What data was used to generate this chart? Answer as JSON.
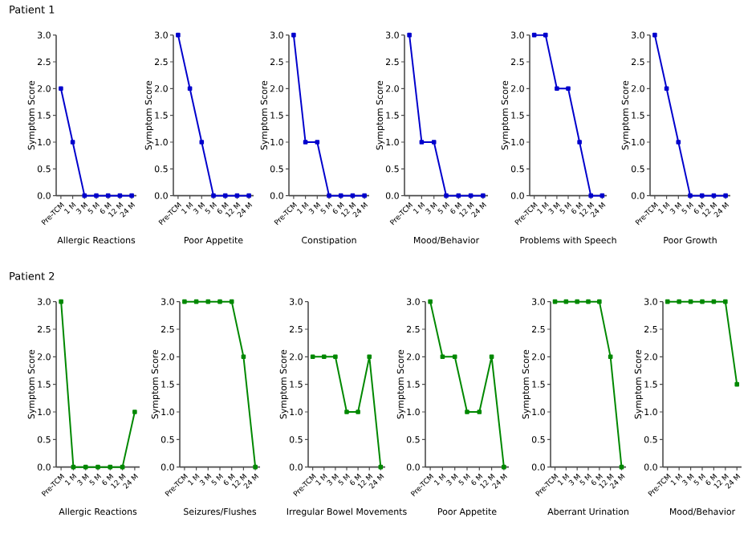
{
  "chart_data": [
    {
      "type": "line",
      "title": "Patient 1",
      "xlabel": "Allergic Reactions",
      "ylabel": "Symptom Score",
      "categories": [
        "Pre-TCM",
        "1 M",
        "3 M",
        "5 M",
        "6 M",
        "12 M",
        "24 M"
      ],
      "values": [
        2,
        1,
        0,
        0,
        0,
        0,
        0
      ],
      "color": "#0000cc",
      "marker": "square",
      "ylim": [
        0,
        3
      ],
      "yticks": [
        {
          "value": 0,
          "label": "0.0"
        },
        {
          "value": 0.5,
          "label": "0.5"
        },
        {
          "value": 1,
          "label": "1.0"
        },
        {
          "value": 1.5,
          "label": "1.5"
        },
        {
          "value": 2,
          "label": "2.0"
        },
        {
          "value": 2.5,
          "label": "2.5"
        },
        {
          "value": 3,
          "label": "3.0"
        }
      ]
    },
    {
      "type": "line",
      "xlabel": "Poor Appetite",
      "ylabel": "Symptom Score",
      "categories": [
        "Pre-TCM",
        "1 M",
        "3 M",
        "5 M",
        "6 M",
        "12 M",
        "24 M"
      ],
      "values": [
        3,
        2,
        1,
        0,
        0,
        0,
        0
      ],
      "color": "#0000cc",
      "marker": "square",
      "ylim": [
        0,
        3
      ],
      "yticks": [
        {
          "value": 0,
          "label": "0.0"
        },
        {
          "value": 0.5,
          "label": "0.5"
        },
        {
          "value": 1,
          "label": "1.0"
        },
        {
          "value": 1.5,
          "label": "1.5"
        },
        {
          "value": 2,
          "label": "2.0"
        },
        {
          "value": 2.5,
          "label": "2.5"
        },
        {
          "value": 3,
          "label": "3.0"
        }
      ]
    },
    {
      "type": "line",
      "xlabel": "Constipation",
      "ylabel": "Symptom Score",
      "categories": [
        "Pre-TCM",
        "1 M",
        "3 M",
        "5 M",
        "6 M",
        "12 M",
        "24 M"
      ],
      "values": [
        3,
        1,
        1,
        0,
        0,
        0,
        0
      ],
      "color": "#0000cc",
      "marker": "square",
      "ylim": [
        0,
        3
      ],
      "yticks": [
        {
          "value": 0,
          "label": "0.0"
        },
        {
          "value": 0.5,
          "label": "0.5"
        },
        {
          "value": 1,
          "label": "1.0"
        },
        {
          "value": 1.5,
          "label": "1.5"
        },
        {
          "value": 2,
          "label": "2.0"
        },
        {
          "value": 2.5,
          "label": "2.5"
        },
        {
          "value": 3,
          "label": "3.0"
        }
      ]
    },
    {
      "type": "line",
      "xlabel": "Mood/Behavior",
      "ylabel": "Symptom Score",
      "categories": [
        "Pre-TCM",
        "1 M",
        "3 M",
        "5 M",
        "6 M",
        "12 M",
        "24 M"
      ],
      "values": [
        3,
        1,
        1,
        0,
        0,
        0,
        0
      ],
      "color": "#0000cc",
      "marker": "square",
      "ylim": [
        0,
        3
      ],
      "yticks": [
        {
          "value": 0,
          "label": "0.0"
        },
        {
          "value": 0.5,
          "label": "0.5"
        },
        {
          "value": 1,
          "label": "1.0"
        },
        {
          "value": 1.5,
          "label": "1.5"
        },
        {
          "value": 2,
          "label": "2.0"
        },
        {
          "value": 2.5,
          "label": "2.5"
        },
        {
          "value": 3,
          "label": "3.0"
        }
      ]
    },
    {
      "type": "line",
      "xlabel": "Problems with Speech",
      "ylabel": "Symptom Score",
      "categories": [
        "Pre-TCM",
        "1 M",
        "3 M",
        "5 M",
        "6 M",
        "12 M",
        "24 M"
      ],
      "values": [
        3,
        3,
        2,
        2,
        1,
        0,
        0
      ],
      "color": "#0000cc",
      "marker": "square",
      "ylim": [
        0,
        3
      ],
      "yticks": [
        {
          "value": 0,
          "label": "0.0"
        },
        {
          "value": 0.5,
          "label": "0.5"
        },
        {
          "value": 1,
          "label": "1.0"
        },
        {
          "value": 1.5,
          "label": "1.5"
        },
        {
          "value": 2,
          "label": "2.0"
        },
        {
          "value": 2.5,
          "label": "2.5"
        },
        {
          "value": 3,
          "label": "3.0"
        }
      ]
    },
    {
      "type": "line",
      "xlabel": "Poor Growth",
      "ylabel": "Symptom Score",
      "categories": [
        "Pre-TCM",
        "1 M",
        "3 M",
        "5 M",
        "6 M",
        "12 M",
        "24 M"
      ],
      "values": [
        3,
        2,
        1,
        0,
        0,
        0,
        0
      ],
      "color": "#0000cc",
      "marker": "square",
      "ylim": [
        0,
        3
      ],
      "yticks": [
        {
          "value": 0,
          "label": "0.0"
        },
        {
          "value": 0.5,
          "label": "0.5"
        },
        {
          "value": 1,
          "label": "1.0"
        },
        {
          "value": 1.5,
          "label": "1.5"
        },
        {
          "value": 2,
          "label": "2.0"
        },
        {
          "value": 2.5,
          "label": "2.5"
        },
        {
          "value": 3,
          "label": "3.0"
        }
      ]
    },
    {
      "type": "line",
      "title": "Patient 2",
      "xlabel": "Allergic Reactions",
      "ylabel": "Symptom Score",
      "categories": [
        "Pre-TCM",
        "1 M",
        "3 M",
        "5 M",
        "6 M",
        "12 M",
        "24 M"
      ],
      "values": [
        3,
        0,
        0,
        0,
        0,
        0,
        1
      ],
      "color": "#008800",
      "marker": "square",
      "ylim": [
        0,
        3
      ],
      "yticks": [
        {
          "value": 0,
          "label": "0.0"
        },
        {
          "value": 0.5,
          "label": "0.5"
        },
        {
          "value": 1,
          "label": "1.0"
        },
        {
          "value": 1.5,
          "label": "1.5"
        },
        {
          "value": 2,
          "label": "2.0"
        },
        {
          "value": 2.5,
          "label": "2.5"
        },
        {
          "value": 3,
          "label": "3.0"
        }
      ]
    },
    {
      "type": "line",
      "xlabel": "Seizures/Flushes",
      "ylabel": "Symptom Score",
      "categories": [
        "Pre-TCM",
        "1 M",
        "3 M",
        "5 M",
        "6 M",
        "12 M",
        "24 M"
      ],
      "values": [
        3,
        3,
        3,
        3,
        3,
        2,
        0
      ],
      "color": "#008800",
      "marker": "square",
      "ylim": [
        0,
        3
      ],
      "yticks": [
        {
          "value": 0,
          "label": "0.0"
        },
        {
          "value": 0.5,
          "label": "0.5"
        },
        {
          "value": 1,
          "label": "1.0"
        },
        {
          "value": 1.5,
          "label": "1.5"
        },
        {
          "value": 2,
          "label": "2.0"
        },
        {
          "value": 2.5,
          "label": "2.5"
        },
        {
          "value": 3,
          "label": "3.0"
        }
      ]
    },
    {
      "type": "line",
      "xlabel": "Irregular Bowel Movements",
      "ylabel": "Symptom Score",
      "categories": [
        "Pre-TCM",
        "1 M",
        "3 M",
        "5 M",
        "6 M",
        "12 M",
        "24 M"
      ],
      "values": [
        2,
        2,
        2,
        1,
        1,
        2,
        0
      ],
      "color": "#008800",
      "marker": "square",
      "ylim": [
        0,
        3
      ],
      "yticks": [
        {
          "value": 0,
          "label": "0.0"
        },
        {
          "value": 0.5,
          "label": "0.5"
        },
        {
          "value": 1,
          "label": "1.0"
        },
        {
          "value": 1.5,
          "label": "1.5"
        },
        {
          "value": 2,
          "label": "2.0"
        },
        {
          "value": 2.5,
          "label": "2.5"
        },
        {
          "value": 3,
          "label": "3.0"
        }
      ]
    },
    {
      "type": "line",
      "xlabel": "Poor Appetite",
      "ylabel": "Symptom Score",
      "categories": [
        "Pre-TCM",
        "1 M",
        "3 M",
        "5 M",
        "6 M",
        "12 M",
        "24 M"
      ],
      "values": [
        3,
        2,
        2,
        1,
        1,
        2,
        0
      ],
      "color": "#008800",
      "marker": "square",
      "ylim": [
        0,
        3
      ],
      "yticks": [
        {
          "value": 0,
          "label": "0.0"
        },
        {
          "value": 0.5,
          "label": "0.5"
        },
        {
          "value": 1,
          "label": "1.0"
        },
        {
          "value": 1.5,
          "label": "1.5"
        },
        {
          "value": 2,
          "label": "2.0"
        },
        {
          "value": 2.5,
          "label": "2.5"
        },
        {
          "value": 3,
          "label": "3.0"
        }
      ]
    },
    {
      "type": "line",
      "xlabel": "Aberrant Urination",
      "ylabel": "Symptom Score",
      "categories": [
        "Pre-TCM",
        "1 M",
        "3 M",
        "5 M",
        "6 M",
        "12 M",
        "24 M"
      ],
      "values": [
        3,
        3,
        3,
        3,
        3,
        2,
        0
      ],
      "color": "#008800",
      "marker": "square",
      "ylim": [
        0,
        3
      ],
      "yticks": [
        {
          "value": 0,
          "label": "0.0"
        },
        {
          "value": 0.5,
          "label": "0.5"
        },
        {
          "value": 1,
          "label": "1.0"
        },
        {
          "value": 1.5,
          "label": "1.5"
        },
        {
          "value": 2,
          "label": "2.0"
        },
        {
          "value": 2.5,
          "label": "2.5"
        },
        {
          "value": 3,
          "label": "3.0"
        }
      ]
    },
    {
      "type": "line",
      "xlabel": "Mood/Behavior",
      "ylabel": "Symptom Score",
      "categories": [
        "Pre-TCM",
        "1 M",
        "3 M",
        "5 M",
        "6 M",
        "12 M",
        "24 M"
      ],
      "values": [
        3,
        3,
        3,
        3,
        3,
        3,
        1.5
      ],
      "color": "#008800",
      "marker": "square",
      "ylim": [
        0,
        3
      ],
      "yticks": [
        {
          "value": 0,
          "label": "0.0"
        },
        {
          "value": 0.5,
          "label": "0.5"
        },
        {
          "value": 1,
          "label": "1.0"
        },
        {
          "value": 1.5,
          "label": "1.5"
        },
        {
          "value": 2,
          "label": "2.0"
        },
        {
          "value": 2.5,
          "label": "2.5"
        },
        {
          "value": 3,
          "label": "3.0"
        }
      ]
    }
  ]
}
